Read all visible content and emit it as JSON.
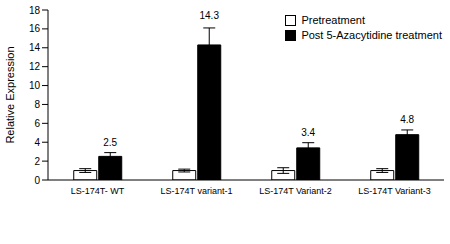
{
  "chart_data": {
    "type": "bar",
    "y_label": "Relative Expression",
    "categories": [
      "LS-174T- WT",
      "LS-174T variant-1",
      "LS-174T Variant-2",
      "LS-174T Variant-3"
    ],
    "series": [
      {
        "name": "Pretreatment",
        "color": "#ffffff",
        "values": [
          1,
          1,
          1,
          1
        ],
        "errors": [
          0.2,
          0.15,
          0.3,
          0.2
        ]
      },
      {
        "name": "Post 5-Azacytidine treatment",
        "color": "#000000",
        "values": [
          2.5,
          14.3,
          3.4,
          4.8
        ],
        "errors": [
          0.4,
          1.8,
          0.55,
          0.5
        ],
        "data_labels": true
      }
    ],
    "ylim": [
      0,
      18
    ],
    "yticks": [
      0,
      2,
      4,
      6,
      8,
      10,
      12,
      14,
      16,
      18
    ],
    "grid": false,
    "legend": "upper right"
  }
}
